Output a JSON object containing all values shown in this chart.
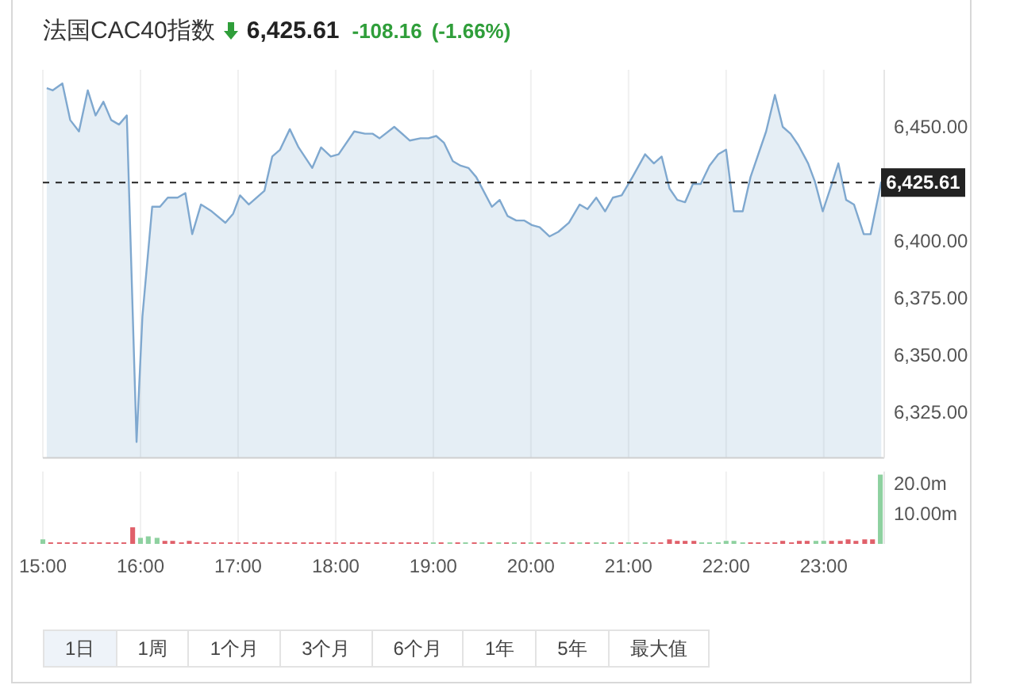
{
  "chart_data": [
    {
      "type": "area",
      "title": "法国CAC40指数",
      "annotations": [
        "6,425.61",
        "-108.16",
        "(-1.66%)"
      ],
      "color": "#7fa8cf",
      "x": [
        15.04,
        15.1,
        15.2,
        15.28,
        15.37,
        15.46,
        15.54,
        15.62,
        15.7,
        15.78,
        15.86,
        15.96,
        16.02,
        16.12,
        16.2,
        16.28,
        16.38,
        16.46,
        16.53,
        16.62,
        16.73,
        16.87,
        16.95,
        17.02,
        17.11,
        17.27,
        17.35,
        17.43,
        17.53,
        17.62,
        17.76,
        17.85,
        17.95,
        18.03,
        18.19,
        18.3,
        18.38,
        18.45,
        18.6,
        18.76,
        18.87,
        18.95,
        19.03,
        19.11,
        19.2,
        19.28,
        19.36,
        19.44,
        19.6,
        19.68,
        19.76,
        19.85,
        19.93,
        20.01,
        20.09,
        20.19,
        20.28,
        20.39,
        20.5,
        20.58,
        20.67,
        20.76,
        20.84,
        20.93,
        21.04,
        21.17,
        21.26,
        21.34,
        21.42,
        21.5,
        21.58,
        21.66,
        21.74,
        21.83,
        21.92,
        22.0,
        22.08,
        22.17,
        22.25,
        22.41,
        22.5,
        22.58,
        22.66,
        22.74,
        22.84,
        22.91,
        22.99,
        23.06,
        23.15,
        23.23,
        23.31,
        23.41,
        23.48,
        23.59
      ],
      "values": [
        6467,
        6466,
        6469,
        6453,
        6448,
        6466,
        6455,
        6461,
        6453,
        6451,
        6455,
        6312,
        6367,
        6415,
        6415,
        6419,
        6419,
        6421,
        6403,
        6416,
        6413,
        6408,
        6412,
        6420,
        6416,
        6422,
        6437,
        6440,
        6449,
        6441,
        6432,
        6441,
        6437,
        6438,
        6448,
        6447,
        6447,
        6445,
        6450,
        6444,
        6445,
        6445,
        6446,
        6443,
        6435,
        6433,
        6432,
        6428,
        6415,
        6418,
        6411,
        6409,
        6409,
        6407,
        6406,
        6402,
        6404,
        6408,
        6416,
        6414,
        6419,
        6413,
        6419,
        6420,
        6428,
        6438,
        6434,
        6437,
        6423,
        6418,
        6417,
        6425,
        6425,
        6433,
        6438,
        6440,
        6413,
        6413,
        6428,
        6448,
        6464,
        6450,
        6447,
        6442,
        6434,
        6426,
        6413,
        6422,
        6434,
        6418,
        6416,
        6403,
        6403,
        6426
      ],
      "xlim": [
        15,
        23.62
      ],
      "xticks": [
        15,
        16,
        17,
        18,
        19,
        20,
        21,
        22,
        23
      ],
      "ylim": [
        6305,
        6475
      ],
      "yticks": [
        {
          "value": 6325,
          "label": "6,325.00"
        },
        {
          "value": 6350,
          "label": "6,350.00"
        },
        {
          "value": 6375,
          "label": "6,375.00"
        },
        {
          "value": 6400,
          "label": "6,400.00"
        },
        {
          "value": 6450,
          "label": "6,450.00"
        }
      ],
      "ref_lines": [
        {
          "axis": "y",
          "value": 6425.61,
          "label": "6,425.61",
          "color": "#222222",
          "line_style": "dashed"
        }
      ],
      "grid": "x",
      "tick_labels": "y"
    },
    {
      "type": "bar",
      "x": [
        15,
        15.08,
        15.17,
        15.25,
        15.33,
        15.42,
        15.5,
        15.58,
        15.67,
        15.75,
        15.83,
        15.92,
        16,
        16.08,
        16.17,
        16.25,
        16.33,
        16.42,
        16.5,
        16.58,
        16.67,
        16.75,
        16.83,
        16.92,
        17,
        17.08,
        17.17,
        17.25,
        17.33,
        17.42,
        17.5,
        17.58,
        17.67,
        17.75,
        17.83,
        17.92,
        18,
        18.08,
        18.17,
        18.25,
        18.33,
        18.42,
        18.5,
        18.58,
        18.67,
        18.75,
        18.83,
        18.92,
        19,
        19.08,
        19.17,
        19.25,
        19.33,
        19.42,
        19.5,
        19.58,
        19.67,
        19.75,
        19.83,
        19.92,
        20,
        20.08,
        20.17,
        20.25,
        20.33,
        20.42,
        20.5,
        20.58,
        20.67,
        20.75,
        20.83,
        20.92,
        21,
        21.08,
        21.17,
        21.25,
        21.33,
        21.42,
        21.5,
        21.58,
        21.67,
        21.75,
        21.83,
        21.92,
        22,
        22.08,
        22.17,
        22.25,
        22.33,
        22.42,
        22.5,
        22.58,
        22.67,
        22.75,
        22.83,
        22.92,
        23,
        23.08,
        23.17,
        23.25,
        23.33,
        23.42,
        23.5,
        23.58
      ],
      "values": [
        1.5,
        0.5,
        0.5,
        0.5,
        0.5,
        0.5,
        0.5,
        0.5,
        0.5,
        0.5,
        0.5,
        5.5,
        2,
        2.5,
        2,
        1,
        1,
        0.5,
        1,
        0.5,
        0.5,
        0.5,
        0.5,
        0.5,
        0.5,
        0.5,
        0.5,
        0.5,
        0.5,
        0.5,
        0.5,
        0.5,
        0.5,
        0.5,
        0.5,
        0.5,
        0.5,
        0.5,
        0.5,
        0.5,
        0.5,
        0.5,
        0.5,
        0.5,
        0.5,
        0.5,
        0.5,
        0.5,
        0.5,
        0.5,
        0.5,
        0.5,
        0.5,
        0.5,
        0.5,
        0.5,
        0.5,
        0.5,
        0.5,
        0.5,
        0.5,
        0.5,
        0.5,
        0.5,
        0.5,
        0.5,
        0.5,
        0.5,
        0.5,
        0.5,
        0.5,
        0.5,
        0.5,
        0.5,
        0.5,
        0.5,
        0.5,
        1.5,
        1,
        1,
        1,
        0.5,
        0.5,
        0.5,
        1,
        1,
        0.5,
        0.5,
        0.5,
        0.5,
        0.5,
        1,
        0.5,
        1,
        1,
        1,
        1,
        1,
        1,
        1.5,
        1,
        1.5,
        1.5,
        23
      ],
      "colors": [
        "#8ed1a0",
        "#e0606a",
        "#e0606a",
        "#e0606a",
        "#e0606a",
        "#e0606a",
        "#e0606a",
        "#e0606a",
        "#e0606a",
        "#e0606a",
        "#e0606a",
        "#e0606a",
        "#8ed1a0",
        "#8ed1a0",
        "#8ed1a0",
        "#e0606a",
        "#e0606a",
        "#e0606a",
        "#e0606a",
        "#e0606a",
        "#e0606a",
        "#e0606a",
        "#e0606a",
        "#e0606a",
        "#e0606a",
        "#e0606a",
        "#e0606a",
        "#e0606a",
        "#e0606a",
        "#e0606a",
        "#e0606a",
        "#e0606a",
        "#e0606a",
        "#e0606a",
        "#e0606a",
        "#e0606a",
        "#e0606a",
        "#e0606a",
        "#e0606a",
        "#e0606a",
        "#e0606a",
        "#e0606a",
        "#e0606a",
        "#e0606a",
        "#e0606a",
        "#e0606a",
        "#e0606a",
        "#e0606a",
        "#8ed1a0",
        "#e0606a",
        "#8ed1a0",
        "#e0606a",
        "#8ed1a0",
        "#e0606a",
        "#8ed1a0",
        "#e0606a",
        "#8ed1a0",
        "#e0606a",
        "#8ed1a0",
        "#e0606a",
        "#8ed1a0",
        "#e0606a",
        "#8ed1a0",
        "#e0606a",
        "#8ed1a0",
        "#e0606a",
        "#8ed1a0",
        "#e0606a",
        "#8ed1a0",
        "#e0606a",
        "#8ed1a0",
        "#e0606a",
        "#8ed1a0",
        "#e0606a",
        "#8ed1a0",
        "#e0606a",
        "#e0606a",
        "#e0606a",
        "#e0606a",
        "#e0606a",
        "#e0606a",
        "#8ed1a0",
        "#8ed1a0",
        "#8ed1a0",
        "#8ed1a0",
        "#8ed1a0",
        "#8ed1a0",
        "#e0606a",
        "#e0606a",
        "#e0606a",
        "#e0606a",
        "#e0606a",
        "#e0606a",
        "#e0606a",
        "#e0606a",
        "#8ed1a0",
        "#8ed1a0",
        "#e0606a",
        "#e0606a",
        "#e0606a",
        "#e0606a",
        "#e0606a",
        "#e0606a",
        "#8ed1a0"
      ],
      "xlim": [
        15,
        23.62
      ],
      "xticks": [
        {
          "value": 15,
          "label": "15:00"
        },
        {
          "value": 16,
          "label": "16:00"
        },
        {
          "value": 17,
          "label": "17:00"
        },
        {
          "value": 18,
          "label": "18:00"
        },
        {
          "value": 19,
          "label": "19:00"
        },
        {
          "value": 20,
          "label": "20:00"
        },
        {
          "value": 21,
          "label": "21:00"
        },
        {
          "value": 22,
          "label": "22:00"
        },
        {
          "value": 23,
          "label": "23:00"
        }
      ],
      "ylim": [
        0,
        24
      ],
      "yticks": [
        {
          "value": 10,
          "label": "10.00m"
        },
        {
          "value": 20,
          "label": "20.0m"
        }
      ],
      "grid": "x"
    },
    {
      "type": "other",
      "annotations": [
        "1日",
        "1周",
        "1个月",
        "3个月",
        "6个月",
        "1年",
        "5年",
        "最大值"
      ]
    }
  ]
}
